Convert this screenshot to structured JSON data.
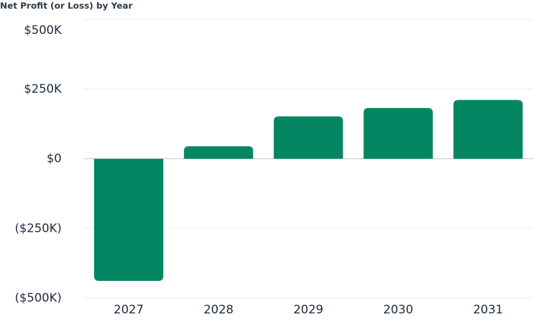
{
  "chart_data": {
    "type": "bar",
    "title": "Net Profit (or Loss) by Year",
    "categories": [
      "2027",
      "2028",
      "2029",
      "2030",
      "2031"
    ],
    "values": [
      -438000,
      45000,
      152000,
      182000,
      211000
    ],
    "color": "#038661",
    "ylim": [
      -500000,
      500000
    ],
    "yticks": [
      {
        "value": -500000,
        "label": "($500K)"
      },
      {
        "value": -250000,
        "label": "($250K)"
      },
      {
        "value": 0,
        "label": "$0"
      },
      {
        "value": 250000,
        "label": "$250K"
      },
      {
        "value": 500000,
        "label": "$500K"
      }
    ],
    "grid": true
  }
}
